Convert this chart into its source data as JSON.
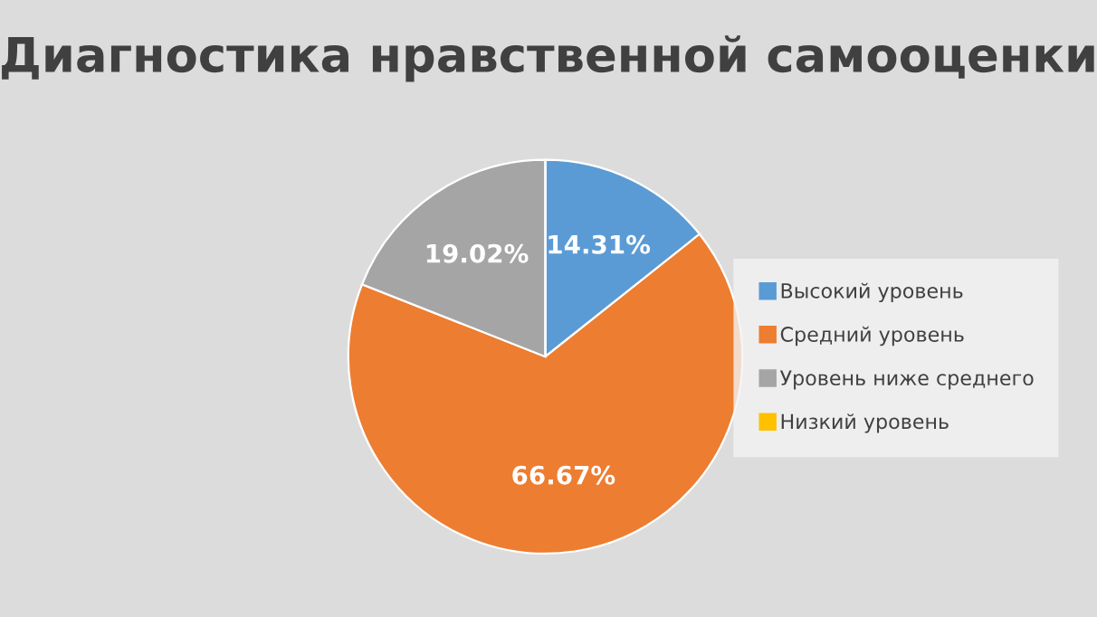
{
  "chart_data": {
    "type": "pie",
    "title": "Диагностика нравственной самооценки",
    "categories": [
      "Высокий уровень",
      "Средний уровень",
      "Уровень ниже среднего",
      "Низкий уровень"
    ],
    "values": [
      14.31,
      66.67,
      19.02,
      0
    ],
    "colors": [
      "#5b9bd5",
      "#ed7d31",
      "#a5a5a5",
      "#ffc000"
    ],
    "value_labels": [
      "14.31%",
      "66.67%",
      "19.02%",
      null
    ],
    "legend": "right"
  }
}
